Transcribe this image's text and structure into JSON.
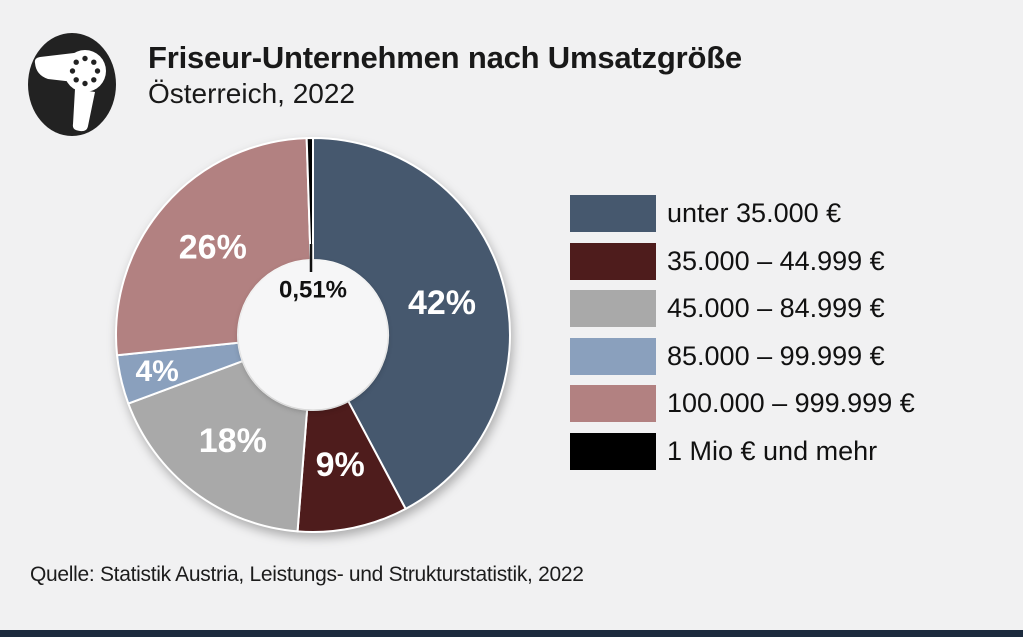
{
  "header": {
    "title": "Friseur-Unternehmen nach Umsatzgröße",
    "subtitle": "Österreich, 2022"
  },
  "logo": {
    "icon": "hairdryer-icon"
  },
  "chart_data": {
    "type": "pie",
    "donut": true,
    "title": "Friseur-Unternehmen nach Umsatzgröße",
    "subtitle": "Österreich, 2022",
    "start_angle": "top",
    "direction": "clockwise",
    "legend_position": "right",
    "units": "% der Unternehmen",
    "series": [
      {
        "label": "unter 35.000 €",
        "value": 42,
        "display": "42%",
        "color": "#46586e",
        "callout": false
      },
      {
        "label": "35.000 – 44.999 €",
        "value": 9,
        "display": "9%",
        "color": "#4e1c1c",
        "callout": false
      },
      {
        "label": "45.000 – 84.999 €",
        "value": 18,
        "display": "18%",
        "color": "#a9a9a9",
        "callout": false
      },
      {
        "label": "85.000 – 99.999 €",
        "value": 4,
        "display": "4%",
        "color": "#8aa0bd",
        "callout": false
      },
      {
        "label": "100.000 – 999.999 €",
        "value": 26,
        "display": "26%",
        "color": "#b28181",
        "callout": false
      },
      {
        "label": "1 Mio € und mehr",
        "value": 0.51,
        "display": "0,51%",
        "color": "#000000",
        "callout": true
      }
    ]
  },
  "footer": {
    "source": "Quelle: Statistik Austria, Leistungs- und Strukturstatistik, 2022"
  },
  "colors": {
    "background": "#f1f1f2",
    "hole": "#f6f6f7",
    "bottom_bar": "#1d2b3e",
    "slice_label": "#ffffff",
    "callout_label": "#111111"
  }
}
